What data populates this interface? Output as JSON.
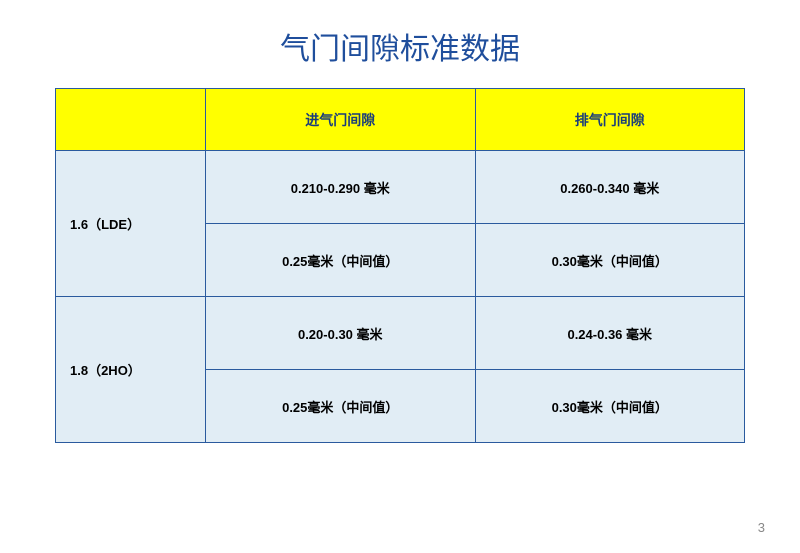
{
  "title": "气门间隙标准数据",
  "headers": {
    "blank": "",
    "col1": "进气门间隙",
    "col2": "排气门间隙"
  },
  "rows": [
    {
      "engine": "1.6（LDE）",
      "intake_range": "0.210-0.290 毫米",
      "exhaust_range": "0.260-0.340 毫米",
      "intake_mid": "0.25毫米（中间值）",
      "exhaust_mid": "0.30毫米（中间值）"
    },
    {
      "engine": "1.8（2HO）",
      "intake_range": "0.20-0.30 毫米",
      "exhaust_range": "0.24-0.36 毫米",
      "intake_mid": "0.25毫米（中间值）",
      "exhaust_mid": "0.30毫米（中间值）"
    }
  ],
  "page_number": "3",
  "colors": {
    "title_color": "#1f4e9c",
    "header_bg": "#ffff00",
    "header_text": "#1a3d7a",
    "cell_bg": "#e1edf5",
    "border": "#2a5a9e",
    "page_num": "#888888"
  }
}
